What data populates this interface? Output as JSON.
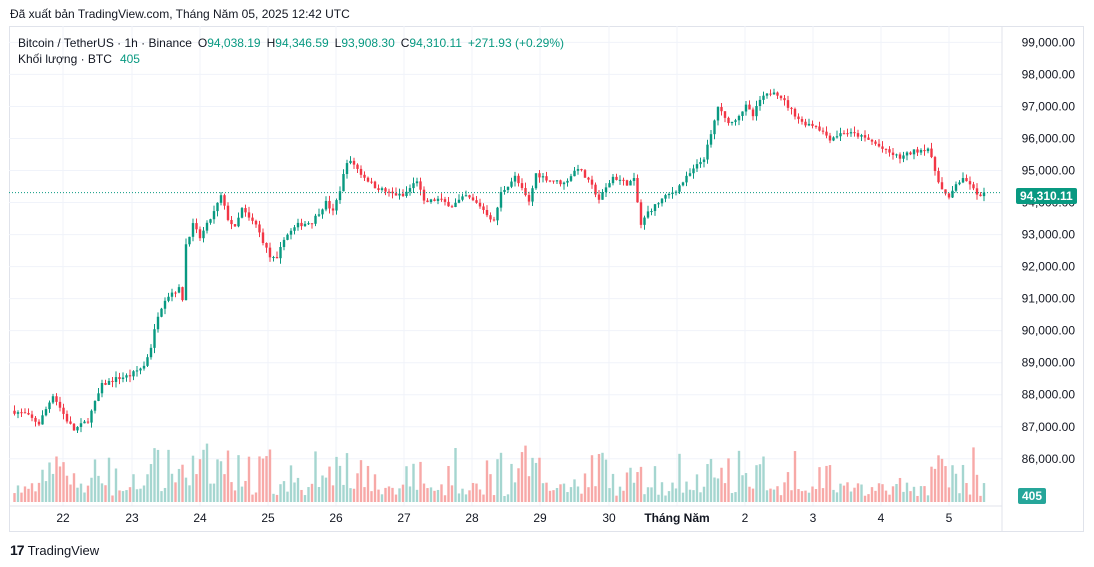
{
  "header": {
    "exported_text": "Đã xuất bản TradingView.com, Tháng Năm 05, 2025 12:42 UTC"
  },
  "legend": {
    "symbol": "Bitcoin / TetherUS · 1h · Binance",
    "open_key": "O",
    "open": "94,038.19",
    "high_key": "H",
    "high": "94,346.59",
    "low_key": "L",
    "low": "93,908.30",
    "close_key": "C",
    "close": "94,310.11",
    "change": "+271.93 (+0.29%)",
    "volume_label": "Khối lượng · BTC",
    "volume_value": "405"
  },
  "price_tag": "94,310.11",
  "volume_tag": "405",
  "footer": {
    "brand": "TradingView",
    "logo_glyph": "17"
  },
  "colors": {
    "up": "#089981",
    "down": "#f23645",
    "vol_up": "#a5d6d0",
    "vol_down": "#f7a9a7",
    "grid": "#f0f3fa",
    "axis_text": "#131722"
  },
  "chart_data": {
    "type": "candlestick",
    "symbol": "Bitcoin / TetherUS",
    "interval": "1h",
    "exchange": "Binance",
    "y_ticks": [
      "99,000.00",
      "98,000.00",
      "97,000.00",
      "96,000.00",
      "95,000.00",
      "94,000.00",
      "93,000.00",
      "92,000.00",
      "91,000.00",
      "90,000.00",
      "89,000.00",
      "88,000.00",
      "87,000.00",
      "86,000.00"
    ],
    "ylim": [
      85400,
      99200
    ],
    "x_ticks": [
      "22",
      "23",
      "24",
      "25",
      "26",
      "27",
      "28",
      "29",
      "30",
      "Tháng Năm",
      "2",
      "3",
      "4",
      "5"
    ],
    "last_price": 94310.11,
    "last_volume": 405,
    "price_path": [
      [
        0,
        87500
      ],
      [
        4,
        87400
      ],
      [
        8,
        87100
      ],
      [
        12,
        88000
      ],
      [
        16,
        87200
      ],
      [
        18,
        86900
      ],
      [
        22,
        87200
      ],
      [
        26,
        88300
      ],
      [
        30,
        88500
      ],
      [
        34,
        88600
      ],
      [
        38,
        88900
      ],
      [
        40,
        89500
      ],
      [
        42,
        90500
      ],
      [
        44,
        91000
      ],
      [
        46,
        91200
      ],
      [
        48,
        91300
      ],
      [
        49,
        91000
      ],
      [
        50,
        92700
      ],
      [
        52,
        93300
      ],
      [
        54,
        92900
      ],
      [
        56,
        93300
      ],
      [
        58,
        93700
      ],
      [
        60,
        94200
      ],
      [
        62,
        93500
      ],
      [
        64,
        93200
      ],
      [
        66,
        93800
      ],
      [
        68,
        93500
      ],
      [
        70,
        93300
      ],
      [
        74,
        92300
      ],
      [
        76,
        92200
      ],
      [
        78,
        92900
      ],
      [
        82,
        93300
      ],
      [
        86,
        93400
      ],
      [
        90,
        94000
      ],
      [
        92,
        93700
      ],
      [
        94,
        94400
      ],
      [
        96,
        95300
      ],
      [
        98,
        95200
      ],
      [
        100,
        94900
      ],
      [
        104,
        94500
      ],
      [
        108,
        94300
      ],
      [
        112,
        94200
      ],
      [
        116,
        94700
      ],
      [
        118,
        94000
      ],
      [
        122,
        94100
      ],
      [
        126,
        93900
      ],
      [
        130,
        94200
      ],
      [
        134,
        93900
      ],
      [
        138,
        93400
      ],
      [
        140,
        94300
      ],
      [
        144,
        94800
      ],
      [
        146,
        94400
      ],
      [
        148,
        94000
      ],
      [
        150,
        94900
      ],
      [
        154,
        94700
      ],
      [
        158,
        94600
      ],
      [
        162,
        95100
      ],
      [
        166,
        94500
      ],
      [
        168,
        94100
      ],
      [
        172,
        94800
      ],
      [
        176,
        94600
      ],
      [
        178,
        94700
      ],
      [
        180,
        93300
      ],
      [
        182,
        93700
      ],
      [
        186,
        94100
      ],
      [
        190,
        94400
      ],
      [
        194,
        94900
      ],
      [
        198,
        95400
      ],
      [
        200,
        96100
      ],
      [
        202,
        97000
      ],
      [
        204,
        96600
      ],
      [
        206,
        96500
      ],
      [
        210,
        97000
      ],
      [
        212,
        96700
      ],
      [
        214,
        97200
      ],
      [
        218,
        97500
      ],
      [
        220,
        97300
      ],
      [
        222,
        97000
      ],
      [
        226,
        96500
      ],
      [
        230,
        96400
      ],
      [
        234,
        96000
      ],
      [
        238,
        96200
      ],
      [
        242,
        96100
      ],
      [
        246,
        95900
      ],
      [
        250,
        95600
      ],
      [
        254,
        95400
      ],
      [
        258,
        95600
      ],
      [
        262,
        95700
      ],
      [
        264,
        95000
      ],
      [
        266,
        94400
      ],
      [
        268,
        94100
      ],
      [
        270,
        94600
      ],
      [
        272,
        94700
      ],
      [
        274,
        94600
      ],
      [
        276,
        94200
      ],
      [
        278,
        94310
      ]
    ]
  }
}
